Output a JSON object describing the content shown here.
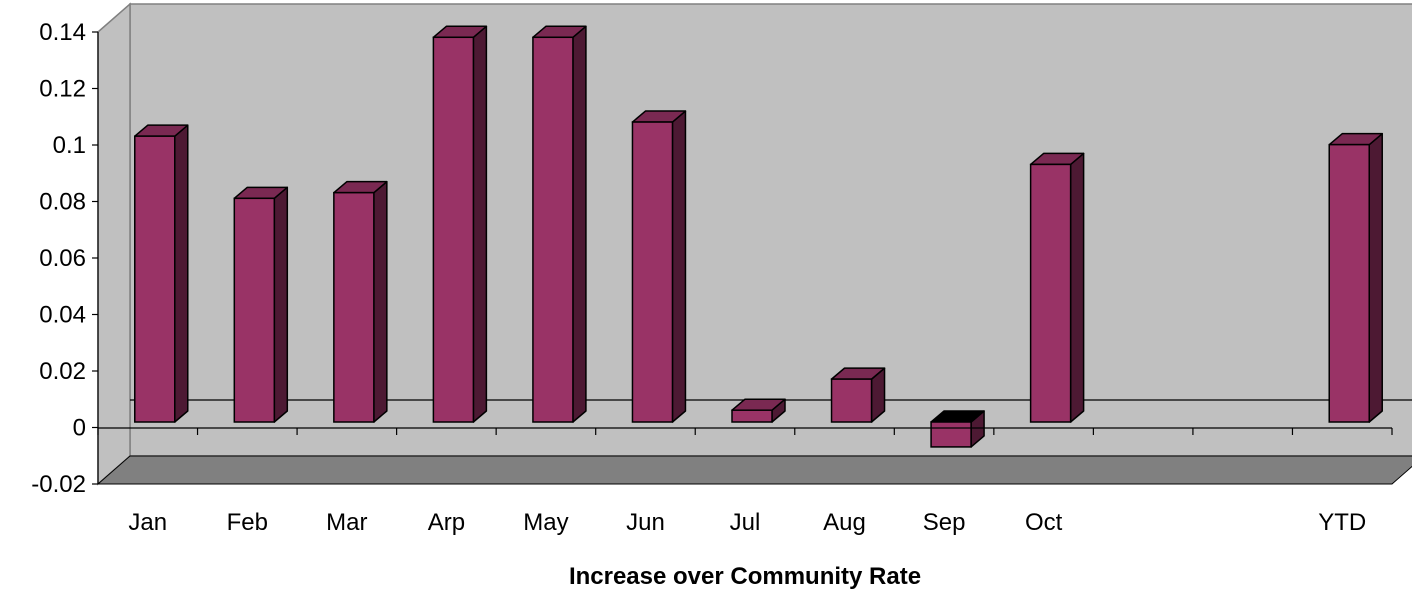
{
  "chart_data": {
    "type": "bar",
    "title": "",
    "xlabel": "Increase over Community Rate",
    "ylabel": "",
    "categories": [
      "Jan",
      "Feb",
      "Mar",
      "Arp",
      "May",
      "Jun",
      "Jul",
      "Aug",
      "Sep",
      "Oct",
      "",
      "",
      "YTD"
    ],
    "values": [
      0.101,
      0.079,
      0.081,
      0.136,
      0.136,
      0.106,
      0.004,
      0.015,
      -0.009,
      0.091,
      null,
      null,
      0.098
    ],
    "ylim": [
      -0.02,
      0.14
    ],
    "yticks": [
      "-0.02",
      "0",
      "0.02",
      "0.04",
      "0.06",
      "0.08",
      "0.1",
      "0.12",
      "0.14"
    ],
    "grid": false,
    "legend": "none",
    "style": "3d-column",
    "colors": {
      "bar_face": "#993366",
      "bar_side": "#4d1933",
      "bar_top": "#7a2952",
      "wall": "#c0c0c0",
      "floor": "#808080"
    }
  }
}
